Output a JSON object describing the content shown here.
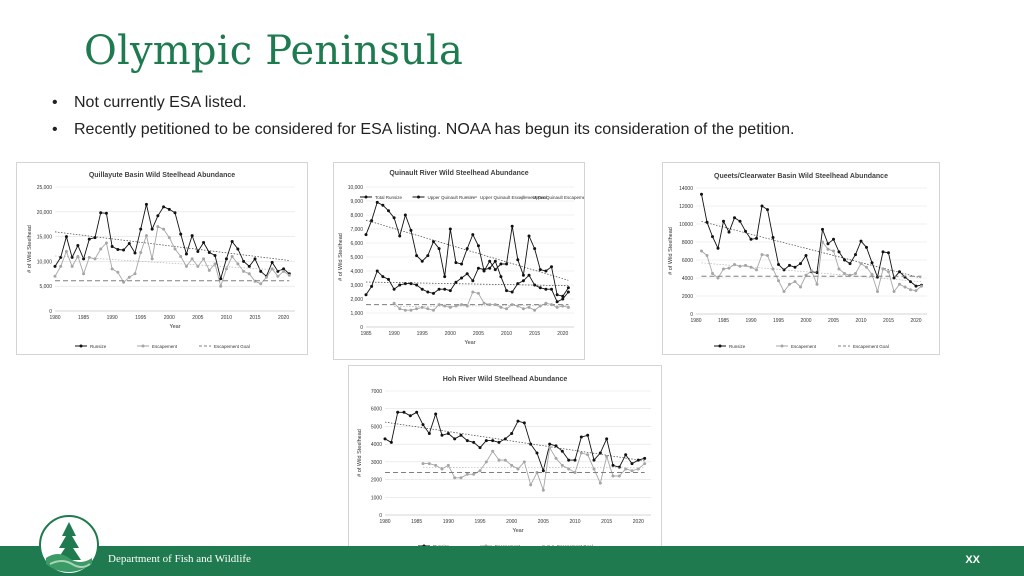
{
  "slide": {
    "title": "Olympic Peninsula",
    "bullets": [
      "Not currently ESA listed.",
      "Recently petitioned to be considered for ESA listing. NOAA has begun its consideration of the petition."
    ],
    "footer_text": "Department of Fish and Wildlife",
    "page_label": "XX",
    "colors": {
      "accent": "#1e7a4f",
      "footer": "#1f7a4f",
      "runsize": "#111111",
      "escapement": "#a6a6a6",
      "goal": "#7f7f7f"
    }
  },
  "chart_data": [
    {
      "type": "line",
      "title": "Quillayute Basin Wild Steelhead Abundance",
      "xlabel": "Year",
      "ylabel": "# of Wild Steelhead",
      "xlim": [
        1980,
        2022
      ],
      "ylim": [
        0,
        25000
      ],
      "xticks": [
        1980,
        1985,
        1990,
        1995,
        2000,
        2005,
        2010,
        2015,
        2020
      ],
      "yticks": [
        0,
        5000,
        10000,
        15000,
        20000,
        25000
      ],
      "ytick_labels": [
        "0",
        "5,000",
        "10,000",
        "15,000",
        "20,000",
        "25,000"
      ],
      "legend": "bottom",
      "grid": true,
      "series": [
        {
          "name": "Runsize",
          "x": [
            1980,
            1981,
            1982,
            1983,
            1984,
            1985,
            1986,
            1987,
            1988,
            1989,
            1990,
            1991,
            1992,
            1993,
            1994,
            1995,
            1996,
            1997,
            1998,
            1999,
            2000,
            2001,
            2002,
            2003,
            2004,
            2005,
            2006,
            2007,
            2008,
            2009,
            2010,
            2011,
            2012,
            2013,
            2014,
            2015,
            2016,
            2017,
            2018,
            2019,
            2020,
            2021
          ],
          "values": [
            9000,
            10800,
            15000,
            10800,
            13200,
            10500,
            14500,
            14800,
            19800,
            19700,
            13000,
            12400,
            12300,
            13600,
            11700,
            16500,
            21500,
            16500,
            19200,
            21000,
            20500,
            19800,
            15500,
            11500,
            15200,
            12000,
            13800,
            11800,
            11200,
            6500,
            10500,
            14000,
            12500,
            10000,
            9000,
            10500,
            8000,
            7000,
            9800,
            8000,
            8500,
            7500
          ],
          "color": "#111111",
          "marker": "circle"
        },
        {
          "name": "Escapement",
          "x": [
            1980,
            1981,
            1982,
            1983,
            1984,
            1985,
            1986,
            1987,
            1988,
            1989,
            1990,
            1991,
            1992,
            1993,
            1994,
            1995,
            1996,
            1997,
            1998,
            1999,
            2000,
            2001,
            2002,
            2003,
            2004,
            2005,
            2006,
            2007,
            2008,
            2009,
            2010,
            2011,
            2012,
            2013,
            2014,
            2015,
            2016,
            2017,
            2018,
            2019,
            2020,
            2021
          ],
          "values": [
            7000,
            9000,
            12000,
            9000,
            11000,
            7500,
            10800,
            10500,
            12500,
            13700,
            8500,
            7800,
            5800,
            6800,
            7500,
            11800,
            15200,
            10500,
            17000,
            16500,
            14800,
            12500,
            11000,
            9000,
            10500,
            9000,
            10500,
            8200,
            9500,
            5000,
            8500,
            11000,
            9500,
            8000,
            7500,
            6000,
            5500,
            6800,
            8500,
            7000,
            8000,
            7200
          ],
          "color": "#a6a6a6",
          "marker": "circle"
        },
        {
          "name": "Escapement Goal",
          "x": [
            1980,
            2021
          ],
          "values": [
            6100,
            6100
          ],
          "color": "#7f7f7f",
          "style": "dashed"
        }
      ]
    },
    {
      "type": "line",
      "title": "Quinault River Wild Steelhead Abundance",
      "xlabel": "Year",
      "ylabel": "# of Wild Steelhead",
      "xlim": [
        1985,
        2022
      ],
      "ylim": [
        0,
        10000
      ],
      "xticks": [
        1985,
        1990,
        1995,
        2000,
        2005,
        2010,
        2015,
        2020
      ],
      "yticks": [
        0,
        1000,
        2000,
        3000,
        4000,
        5000,
        6000,
        7000,
        8000,
        9000,
        10000
      ],
      "ytick_labels": [
        "0",
        "1,000",
        "2,000",
        "3,000",
        "4,000",
        "5,000",
        "6,000",
        "7,000",
        "8,000",
        "9,000",
        "10,000"
      ],
      "legend": "top",
      "grid": true,
      "series": [
        {
          "name": "Total Runsize",
          "x": [
            1985,
            1986,
            1987,
            1988,
            1989,
            1990,
            1991,
            1992,
            1993,
            1994,
            1995,
            1996,
            1997,
            1998,
            1999,
            2000,
            2001,
            2002,
            2003,
            2004,
            2005,
            2006,
            2007,
            2008,
            2009,
            2010,
            2011,
            2012,
            2013,
            2014,
            2015,
            2016,
            2017,
            2018,
            2019,
            2020,
            2021
          ],
          "values": [
            6600,
            7600,
            8900,
            8700,
            8300,
            7800,
            6500,
            8000,
            6900,
            5100,
            4700,
            5100,
            6100,
            5600,
            3600,
            7000,
            4600,
            4500,
            5600,
            6600,
            5800,
            4000,
            4700,
            4100,
            4500,
            4500,
            7200,
            4800,
            3700,
            6500,
            5600,
            4100,
            4000,
            4300,
            2300,
            2200,
            2800
          ],
          "color": "#111111",
          "marker": "circle"
        },
        {
          "name": "Upper Quinault Runsize",
          "x": [
            1985,
            1986,
            1987,
            1988,
            1989,
            1990,
            1991,
            1992,
            1993,
            1994,
            1995,
            1996,
            1997,
            1998,
            1999,
            2000,
            2001,
            2002,
            2003,
            2004,
            2005,
            2006,
            2007,
            2008,
            2009,
            2010,
            2011,
            2012,
            2013,
            2014,
            2015,
            2016,
            2017,
            2018,
            2019,
            2020,
            2021
          ],
          "values": [
            2300,
            2900,
            4000,
            3600,
            3400,
            2700,
            3000,
            3100,
            3100,
            3000,
            2700,
            2500,
            2400,
            2700,
            2700,
            2600,
            3200,
            3500,
            3800,
            3300,
            4200,
            4100,
            4200,
            4700,
            3600,
            2600,
            2500,
            3100,
            3300,
            3700,
            3000,
            2800,
            2700,
            2700,
            1800,
            2000,
            2500
          ],
          "color": "#111111",
          "marker": "circle"
        },
        {
          "name": "Upper Quinault Escapement Goal",
          "x": [
            1985,
            2021
          ],
          "values": [
            1600,
            1600
          ],
          "color": "#7f7f7f",
          "style": "dashed"
        },
        {
          "name": "Upper Quinault Escapement",
          "x": [
            1990,
            1991,
            1992,
            1993,
            1994,
            1995,
            1996,
            1997,
            1998,
            1999,
            2000,
            2001,
            2002,
            2003,
            2004,
            2005,
            2006,
            2007,
            2008,
            2009,
            2010,
            2011,
            2012,
            2013,
            2014,
            2015,
            2016,
            2017,
            2018,
            2019,
            2020,
            2021
          ],
          "values": [
            1700,
            1300,
            1200,
            1200,
            1300,
            1400,
            1300,
            1200,
            1600,
            1500,
            1400,
            1500,
            1600,
            1500,
            2500,
            2400,
            1700,
            1600,
            1600,
            1400,
            1300,
            1600,
            1500,
            1300,
            1400,
            1200,
            1500,
            1700,
            1600,
            1400,
            1500,
            1400
          ],
          "color": "#a6a6a6",
          "marker": "circle"
        }
      ]
    },
    {
      "type": "line",
      "title": "Queets/Clearwater Basin Wild Steelhead Abundance",
      "xlabel": "",
      "ylabel": "# of Wild Steelhead",
      "xlim": [
        1980,
        2022
      ],
      "ylim": [
        0,
        14000
      ],
      "xticks": [
        1980,
        1985,
        1990,
        1995,
        2000,
        2005,
        2010,
        2015,
        2020
      ],
      "yticks": [
        0,
        2000,
        4000,
        6000,
        8000,
        10000,
        12000,
        14000
      ],
      "ytick_labels": [
        "0",
        "2000",
        "4000",
        "6000",
        "8000",
        "10000",
        "12000",
        "14000"
      ],
      "legend": "bottom",
      "grid": true,
      "series": [
        {
          "name": "Runsize",
          "x": [
            1981,
            1982,
            1983,
            1984,
            1985,
            1986,
            1987,
            1988,
            1989,
            1990,
            1991,
            1992,
            1993,
            1994,
            1995,
            1996,
            1997,
            1998,
            1999,
            2000,
            2001,
            2002,
            2003,
            2004,
            2005,
            2006,
            2007,
            2008,
            2009,
            2010,
            2011,
            2012,
            2013,
            2014,
            2015,
            2016,
            2017,
            2018,
            2019,
            2020,
            2021
          ],
          "values": [
            13300,
            10200,
            8600,
            7300,
            10300,
            9100,
            10700,
            10300,
            9200,
            8300,
            8400,
            12000,
            11600,
            8500,
            5500,
            4900,
            5400,
            5200,
            5600,
            6500,
            4700,
            4600,
            9400,
            7800,
            8300,
            6900,
            6000,
            5600,
            6600,
            8100,
            7400,
            5700,
            4100,
            6900,
            6800,
            4000,
            4700,
            4100,
            3600,
            3100,
            3200
          ],
          "color": "#111111",
          "marker": "circle"
        },
        {
          "name": "Escapement",
          "x": [
            1981,
            1982,
            1983,
            1984,
            1985,
            1986,
            1987,
            1988,
            1989,
            1990,
            1991,
            1992,
            1993,
            1994,
            1995,
            1996,
            1997,
            1998,
            1999,
            2000,
            2001,
            2002,
            2003,
            2004,
            2005,
            2006,
            2007,
            2008,
            2009,
            2010,
            2011,
            2012,
            2013,
            2014,
            2015,
            2016,
            2017,
            2018,
            2019,
            2020,
            2021
          ],
          "values": [
            7000,
            6500,
            4500,
            4000,
            5000,
            5100,
            5500,
            5300,
            5400,
            5200,
            4900,
            6600,
            6500,
            5000,
            3700,
            2500,
            3300,
            3600,
            3000,
            4300,
            4800,
            3300,
            8000,
            7200,
            7000,
            5000,
            4500,
            4300,
            4500,
            5600,
            5200,
            4400,
            2500,
            5000,
            4700,
            2500,
            3300,
            3000,
            2700,
            2600,
            3100
          ],
          "color": "#a6a6a6",
          "marker": "circle"
        },
        {
          "name": "Escapement Goal",
          "x": [
            1981,
            2021
          ],
          "values": [
            4200,
            4200
          ],
          "color": "#7f7f7f",
          "style": "dashed"
        }
      ]
    },
    {
      "type": "line",
      "title": "Hoh River Wild Steelhead Abundance",
      "xlabel": "Year",
      "ylabel": "# of Wild Steelhead",
      "xlim": [
        1980,
        2022
      ],
      "ylim": [
        0,
        7000
      ],
      "xticks": [
        1980,
        1985,
        1990,
        1995,
        2000,
        2005,
        2010,
        2015,
        2020
      ],
      "yticks": [
        0,
        1000,
        2000,
        3000,
        4000,
        5000,
        6000,
        7000
      ],
      "ytick_labels": [
        "0",
        "1000",
        "2000",
        "3000",
        "4000",
        "5000",
        "6000",
        "7000"
      ],
      "legend": "bottom",
      "grid": true,
      "series": [
        {
          "name": "Runsize",
          "x": [
            1980,
            1981,
            1982,
            1983,
            1984,
            1985,
            1986,
            1987,
            1988,
            1989,
            1990,
            1991,
            1992,
            1993,
            1994,
            1995,
            1996,
            1997,
            1998,
            1999,
            2000,
            2001,
            2002,
            2003,
            2004,
            2005,
            2006,
            2007,
            2008,
            2009,
            2010,
            2011,
            2012,
            2013,
            2014,
            2015,
            2016,
            2017,
            2018,
            2019,
            2020,
            2021
          ],
          "values": [
            4300,
            4100,
            5800,
            5800,
            5600,
            5800,
            5100,
            4600,
            5700,
            4500,
            4600,
            4300,
            4500,
            4200,
            4100,
            3800,
            4200,
            4200,
            4100,
            4300,
            4600,
            5300,
            5200,
            4000,
            3500,
            2500,
            4000,
            3900,
            3600,
            3100,
            3100,
            4400,
            4500,
            3100,
            3500,
            4300,
            2800,
            2700,
            3400,
            2900,
            3100,
            3200
          ],
          "color": "#111111",
          "marker": "circle"
        },
        {
          "name": "Escapement",
          "x": [
            1980,
            1981,
            1982,
            1983,
            1984,
            1985,
            1986,
            1987,
            1988,
            1989,
            1990,
            1991,
            1992,
            1993,
            1994,
            1995,
            1996,
            1997,
            1998,
            1999,
            2000,
            2001,
            2002,
            2003,
            2004,
            2005,
            2006,
            2007,
            2008,
            2009,
            2010,
            2011,
            2012,
            2013,
            2014,
            2015,
            2016,
            2017,
            2018,
            2019,
            2020,
            2021
          ],
          "values": [
            null,
            null,
            null,
            null,
            null,
            null,
            2900,
            2900,
            2800,
            2600,
            2800,
            2100,
            2100,
            2300,
            2300,
            2500,
            3000,
            3600,
            3100,
            3100,
            2800,
            2600,
            3000,
            1700,
            2400,
            1400,
            3800,
            3200,
            2800,
            2600,
            2400,
            3500,
            3400,
            2600,
            1800,
            3300,
            2200,
            2200,
            2600,
            2500,
            2600,
            2900
          ],
          "color": "#a6a6a6",
          "marker": "circle"
        },
        {
          "name": "Escapement Goal",
          "x": [
            1980,
            2021
          ],
          "values": [
            2400,
            2400
          ],
          "color": "#7f7f7f",
          "style": "dashed"
        }
      ]
    }
  ]
}
